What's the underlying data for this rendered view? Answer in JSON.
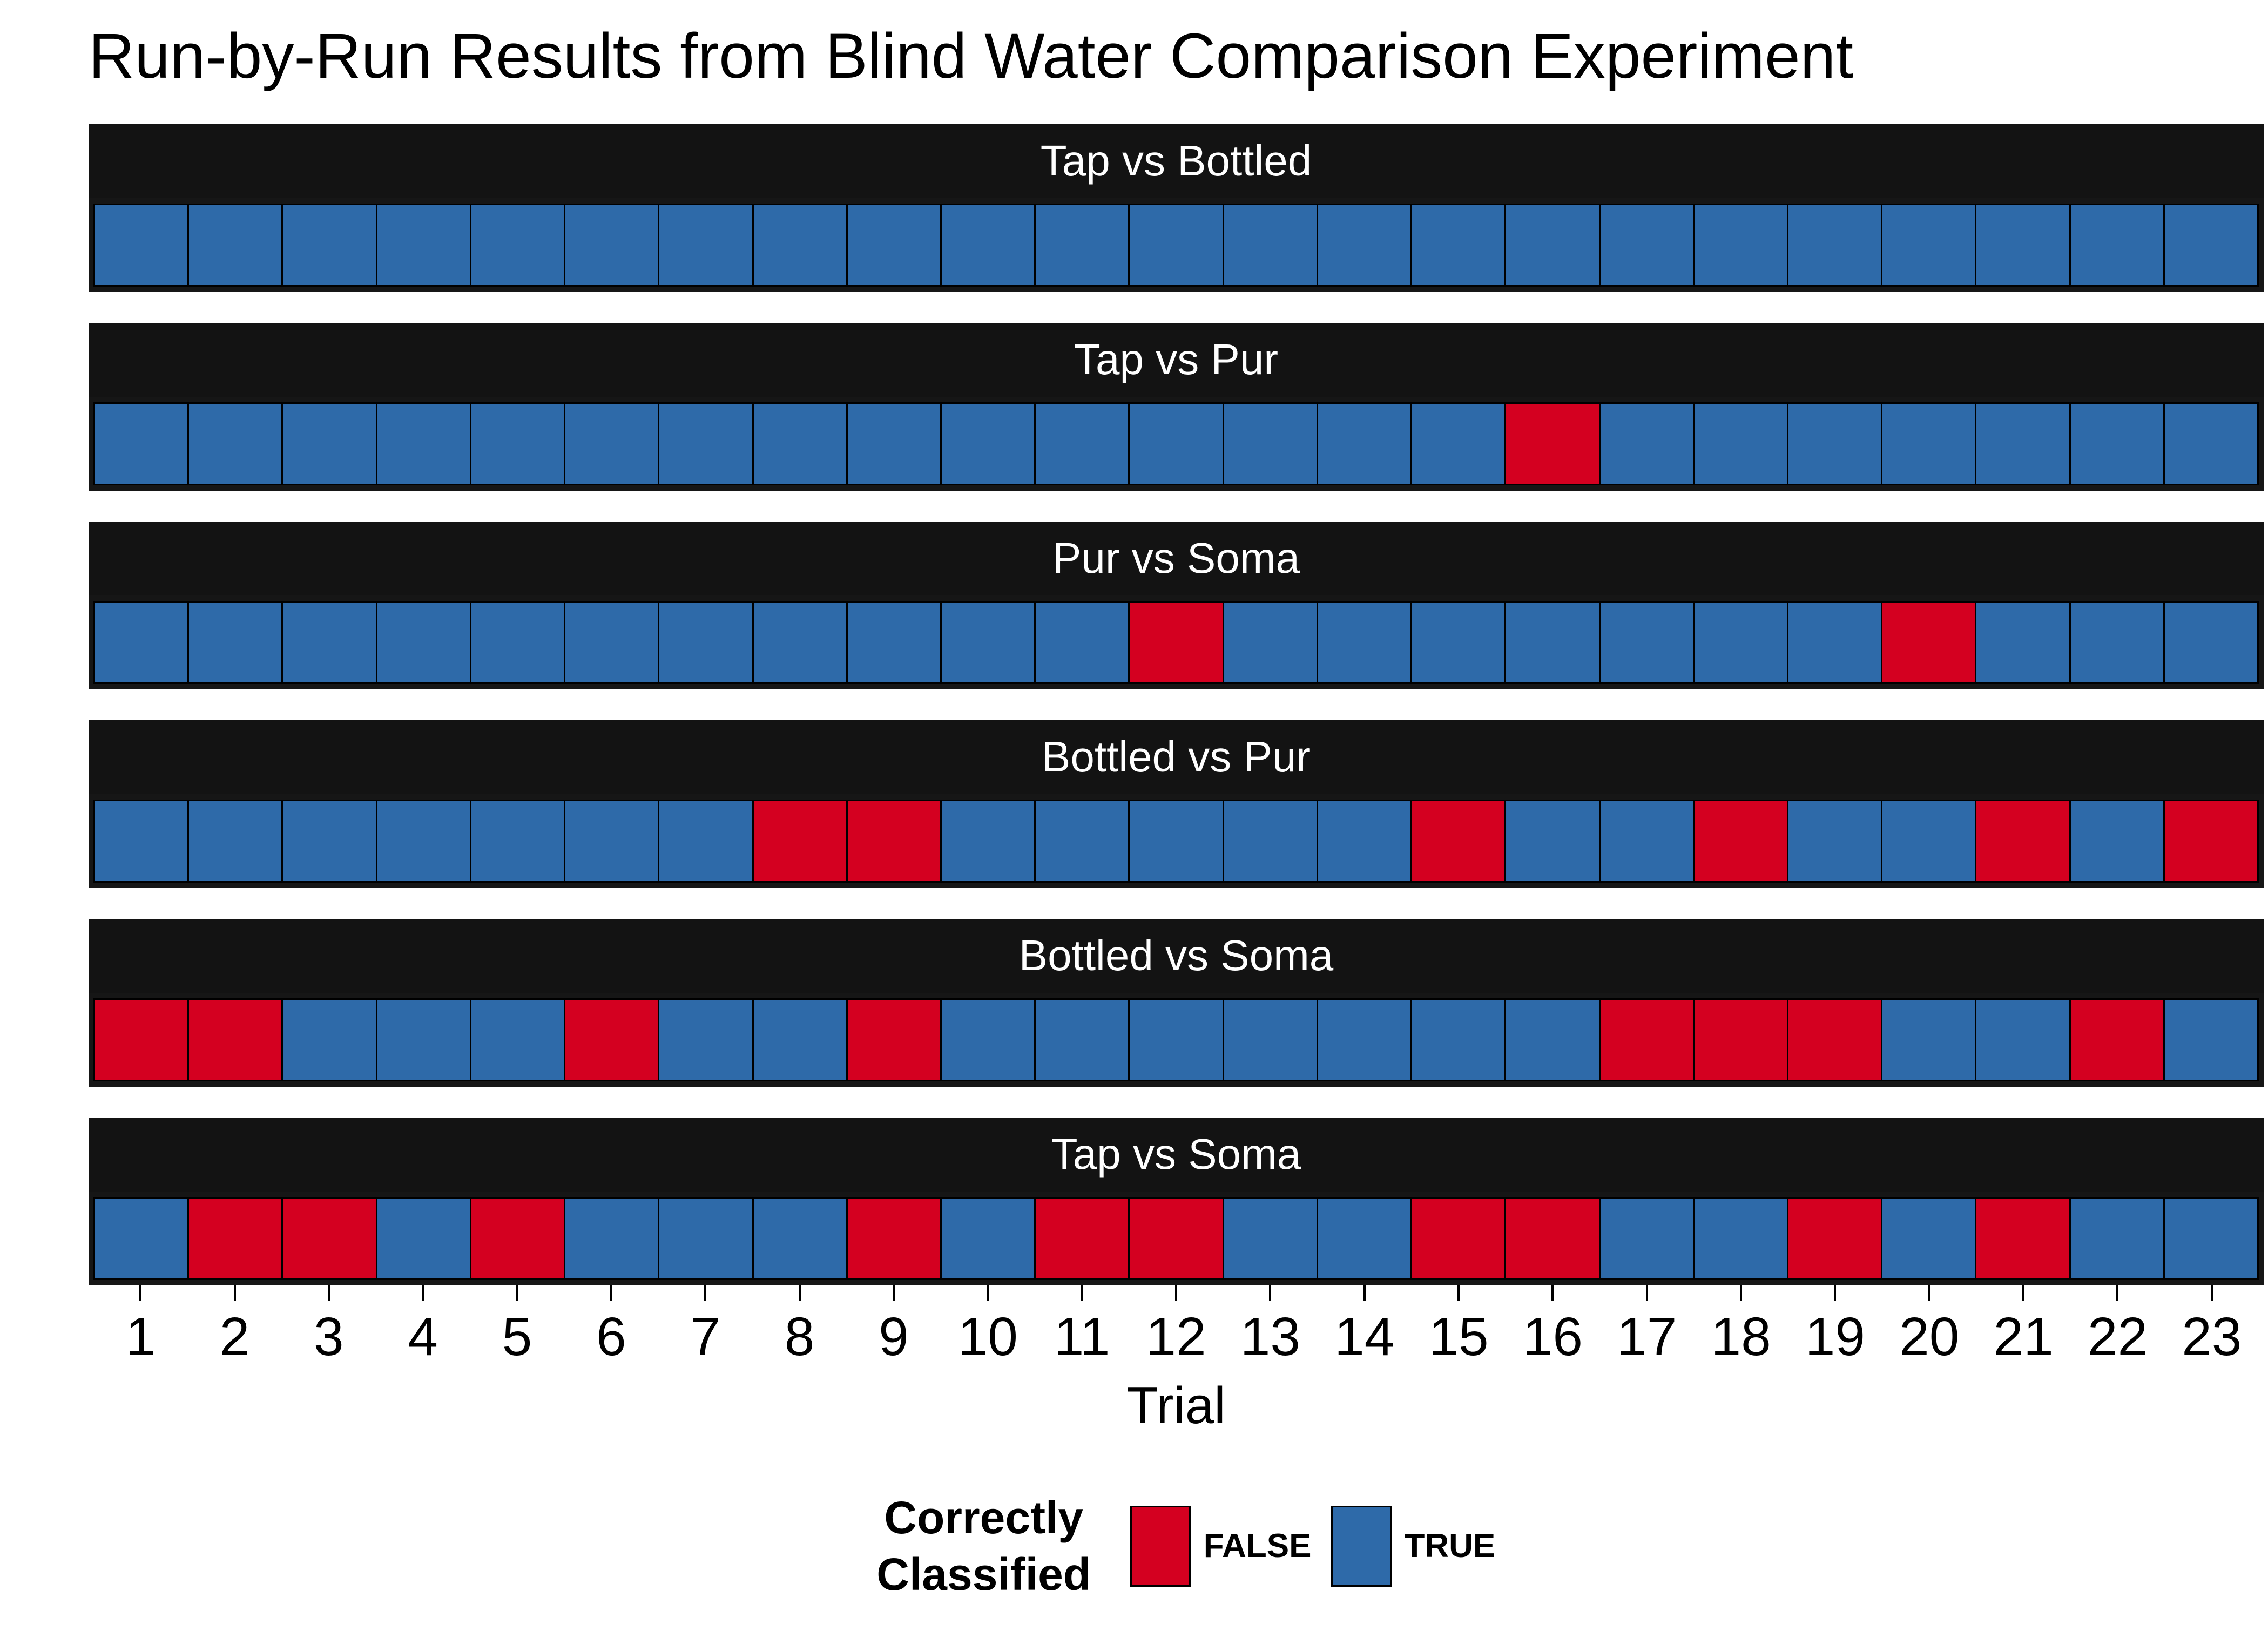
{
  "page": {
    "title": "Run-by-Run Results from Blind Water Comparison Experiment"
  },
  "chart_data": {
    "type": "heatmap",
    "title": "Run-by-Run Results from Blind Water Comparison Experiment",
    "xlabel": "Trial",
    "x": [
      1,
      2,
      3,
      4,
      5,
      6,
      7,
      8,
      9,
      10,
      11,
      12,
      13,
      14,
      15,
      16,
      17,
      18,
      19,
      20,
      21,
      22,
      23
    ],
    "facets": [
      {
        "label": "Tap vs Bottled",
        "correct": [
          "TRUE",
          "TRUE",
          "TRUE",
          "TRUE",
          "TRUE",
          "TRUE",
          "TRUE",
          "TRUE",
          "TRUE",
          "TRUE",
          "TRUE",
          "TRUE",
          "TRUE",
          "TRUE",
          "TRUE",
          "TRUE",
          "TRUE",
          "TRUE",
          "TRUE",
          "TRUE",
          "TRUE",
          "TRUE",
          "TRUE"
        ]
      },
      {
        "label": "Tap vs Pur",
        "correct": [
          "TRUE",
          "TRUE",
          "TRUE",
          "TRUE",
          "TRUE",
          "TRUE",
          "TRUE",
          "TRUE",
          "TRUE",
          "TRUE",
          "TRUE",
          "TRUE",
          "TRUE",
          "TRUE",
          "TRUE",
          "FALSE",
          "TRUE",
          "TRUE",
          "TRUE",
          "TRUE",
          "TRUE",
          "TRUE",
          "TRUE"
        ]
      },
      {
        "label": "Pur vs Soma",
        "correct": [
          "TRUE",
          "TRUE",
          "TRUE",
          "TRUE",
          "TRUE",
          "TRUE",
          "TRUE",
          "TRUE",
          "TRUE",
          "TRUE",
          "TRUE",
          "FALSE",
          "TRUE",
          "TRUE",
          "TRUE",
          "TRUE",
          "TRUE",
          "TRUE",
          "TRUE",
          "FALSE",
          "TRUE",
          "TRUE",
          "TRUE"
        ]
      },
      {
        "label": "Bottled vs Pur",
        "correct": [
          "TRUE",
          "TRUE",
          "TRUE",
          "TRUE",
          "TRUE",
          "TRUE",
          "TRUE",
          "FALSE",
          "FALSE",
          "TRUE",
          "TRUE",
          "TRUE",
          "TRUE",
          "TRUE",
          "FALSE",
          "TRUE",
          "TRUE",
          "FALSE",
          "TRUE",
          "TRUE",
          "FALSE",
          "TRUE",
          "FALSE"
        ]
      },
      {
        "label": "Bottled vs Soma",
        "correct": [
          "FALSE",
          "FALSE",
          "TRUE",
          "TRUE",
          "TRUE",
          "FALSE",
          "TRUE",
          "TRUE",
          "FALSE",
          "TRUE",
          "TRUE",
          "TRUE",
          "TRUE",
          "TRUE",
          "TRUE",
          "TRUE",
          "FALSE",
          "FALSE",
          "FALSE",
          "TRUE",
          "TRUE",
          "FALSE",
          "TRUE"
        ]
      },
      {
        "label": "Tap vs Soma",
        "correct": [
          "TRUE",
          "FALSE",
          "FALSE",
          "TRUE",
          "FALSE",
          "TRUE",
          "TRUE",
          "TRUE",
          "FALSE",
          "TRUE",
          "FALSE",
          "FALSE",
          "TRUE",
          "TRUE",
          "FALSE",
          "FALSE",
          "TRUE",
          "TRUE",
          "FALSE",
          "TRUE",
          "FALSE",
          "TRUE",
          "TRUE"
        ]
      }
    ],
    "legend": {
      "title": "Correctly Classified",
      "position": "bottom",
      "items": [
        {
          "label": "FALSE",
          "value": "FALSE",
          "color": "#d40020"
        },
        {
          "label": "TRUE",
          "value": "TRUE",
          "color": "#2e6aa9"
        }
      ]
    },
    "colors": {
      "TRUE": "#2e6aa9",
      "FALSE": "#d40020",
      "strip_bg": "#131313",
      "strip_text": "#ffffff",
      "panel_bg": "#161616",
      "tile_border": "#000000"
    },
    "layout": {
      "grid": "off",
      "facet_rows": 6,
      "tiles_per_row": 23
    }
  }
}
